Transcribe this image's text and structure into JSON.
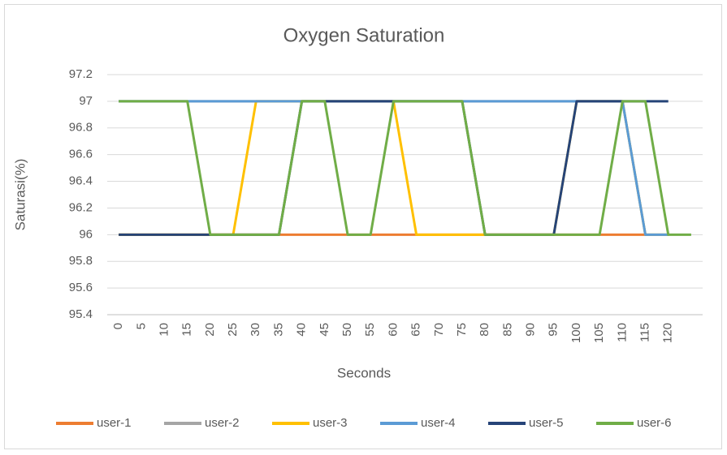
{
  "chart_data": {
    "type": "line",
    "title": "Oxygen Saturation",
    "x_label": "Seconds",
    "y_label": "Saturasi(%)",
    "categories": [
      0,
      5,
      10,
      15,
      20,
      25,
      30,
      35,
      40,
      45,
      50,
      55,
      60,
      65,
      70,
      75,
      80,
      85,
      90,
      95,
      100,
      105,
      110,
      115,
      120,
      null
    ],
    "ylim": [
      95.4,
      97.2
    ],
    "yticks": [
      95.4,
      95.6,
      95.8,
      96,
      96.2,
      96.4,
      96.6,
      96.8,
      97,
      97.2
    ],
    "grid": true,
    "legend": "bottom",
    "series": [
      {
        "name": "user-1",
        "color": "#ED7D31",
        "values": [
          96,
          96,
          96,
          96,
          96,
          96,
          96,
          96,
          96,
          96,
          96,
          96,
          96,
          96,
          96,
          96,
          96,
          96,
          96,
          96,
          96,
          96,
          96,
          96,
          null,
          null
        ]
      },
      {
        "name": "user-2",
        "color": "#A5A5A5",
        "values": [
          97,
          97,
          97,
          97,
          97,
          97,
          97,
          97,
          97,
          97,
          97,
          97,
          97,
          97,
          97,
          97,
          97,
          97,
          97,
          97,
          97,
          97,
          97,
          96,
          96,
          null
        ]
      },
      {
        "name": "user-3",
        "color": "#FFC000",
        "values": [
          96,
          96,
          96,
          96,
          96,
          96,
          97,
          97,
          97,
          97,
          97,
          97,
          97,
          96,
          96,
          96,
          96,
          96,
          96,
          96,
          97,
          97,
          97,
          96,
          96,
          null
        ]
      },
      {
        "name": "user-4",
        "color": "#5B9BD5",
        "values": [
          97,
          97,
          97,
          97,
          97,
          97,
          97,
          97,
          97,
          97,
          97,
          97,
          97,
          97,
          97,
          97,
          97,
          97,
          97,
          97,
          97,
          97,
          97,
          96,
          96,
          null
        ]
      },
      {
        "name": "user-5",
        "color": "#264478",
        "values": [
          96,
          96,
          96,
          96,
          96,
          96,
          96,
          96,
          97,
          97,
          97,
          97,
          97,
          97,
          97,
          97,
          96,
          96,
          96,
          96,
          97,
          97,
          97,
          97,
          97,
          null
        ]
      },
      {
        "name": "user-6",
        "color": "#70AD47",
        "values": [
          97,
          97,
          97,
          97,
          96,
          96,
          96,
          96,
          97,
          97,
          96,
          96,
          97,
          97,
          97,
          97,
          96,
          96,
          96,
          96,
          96,
          96,
          97,
          97,
          96,
          96
        ]
      }
    ]
  }
}
